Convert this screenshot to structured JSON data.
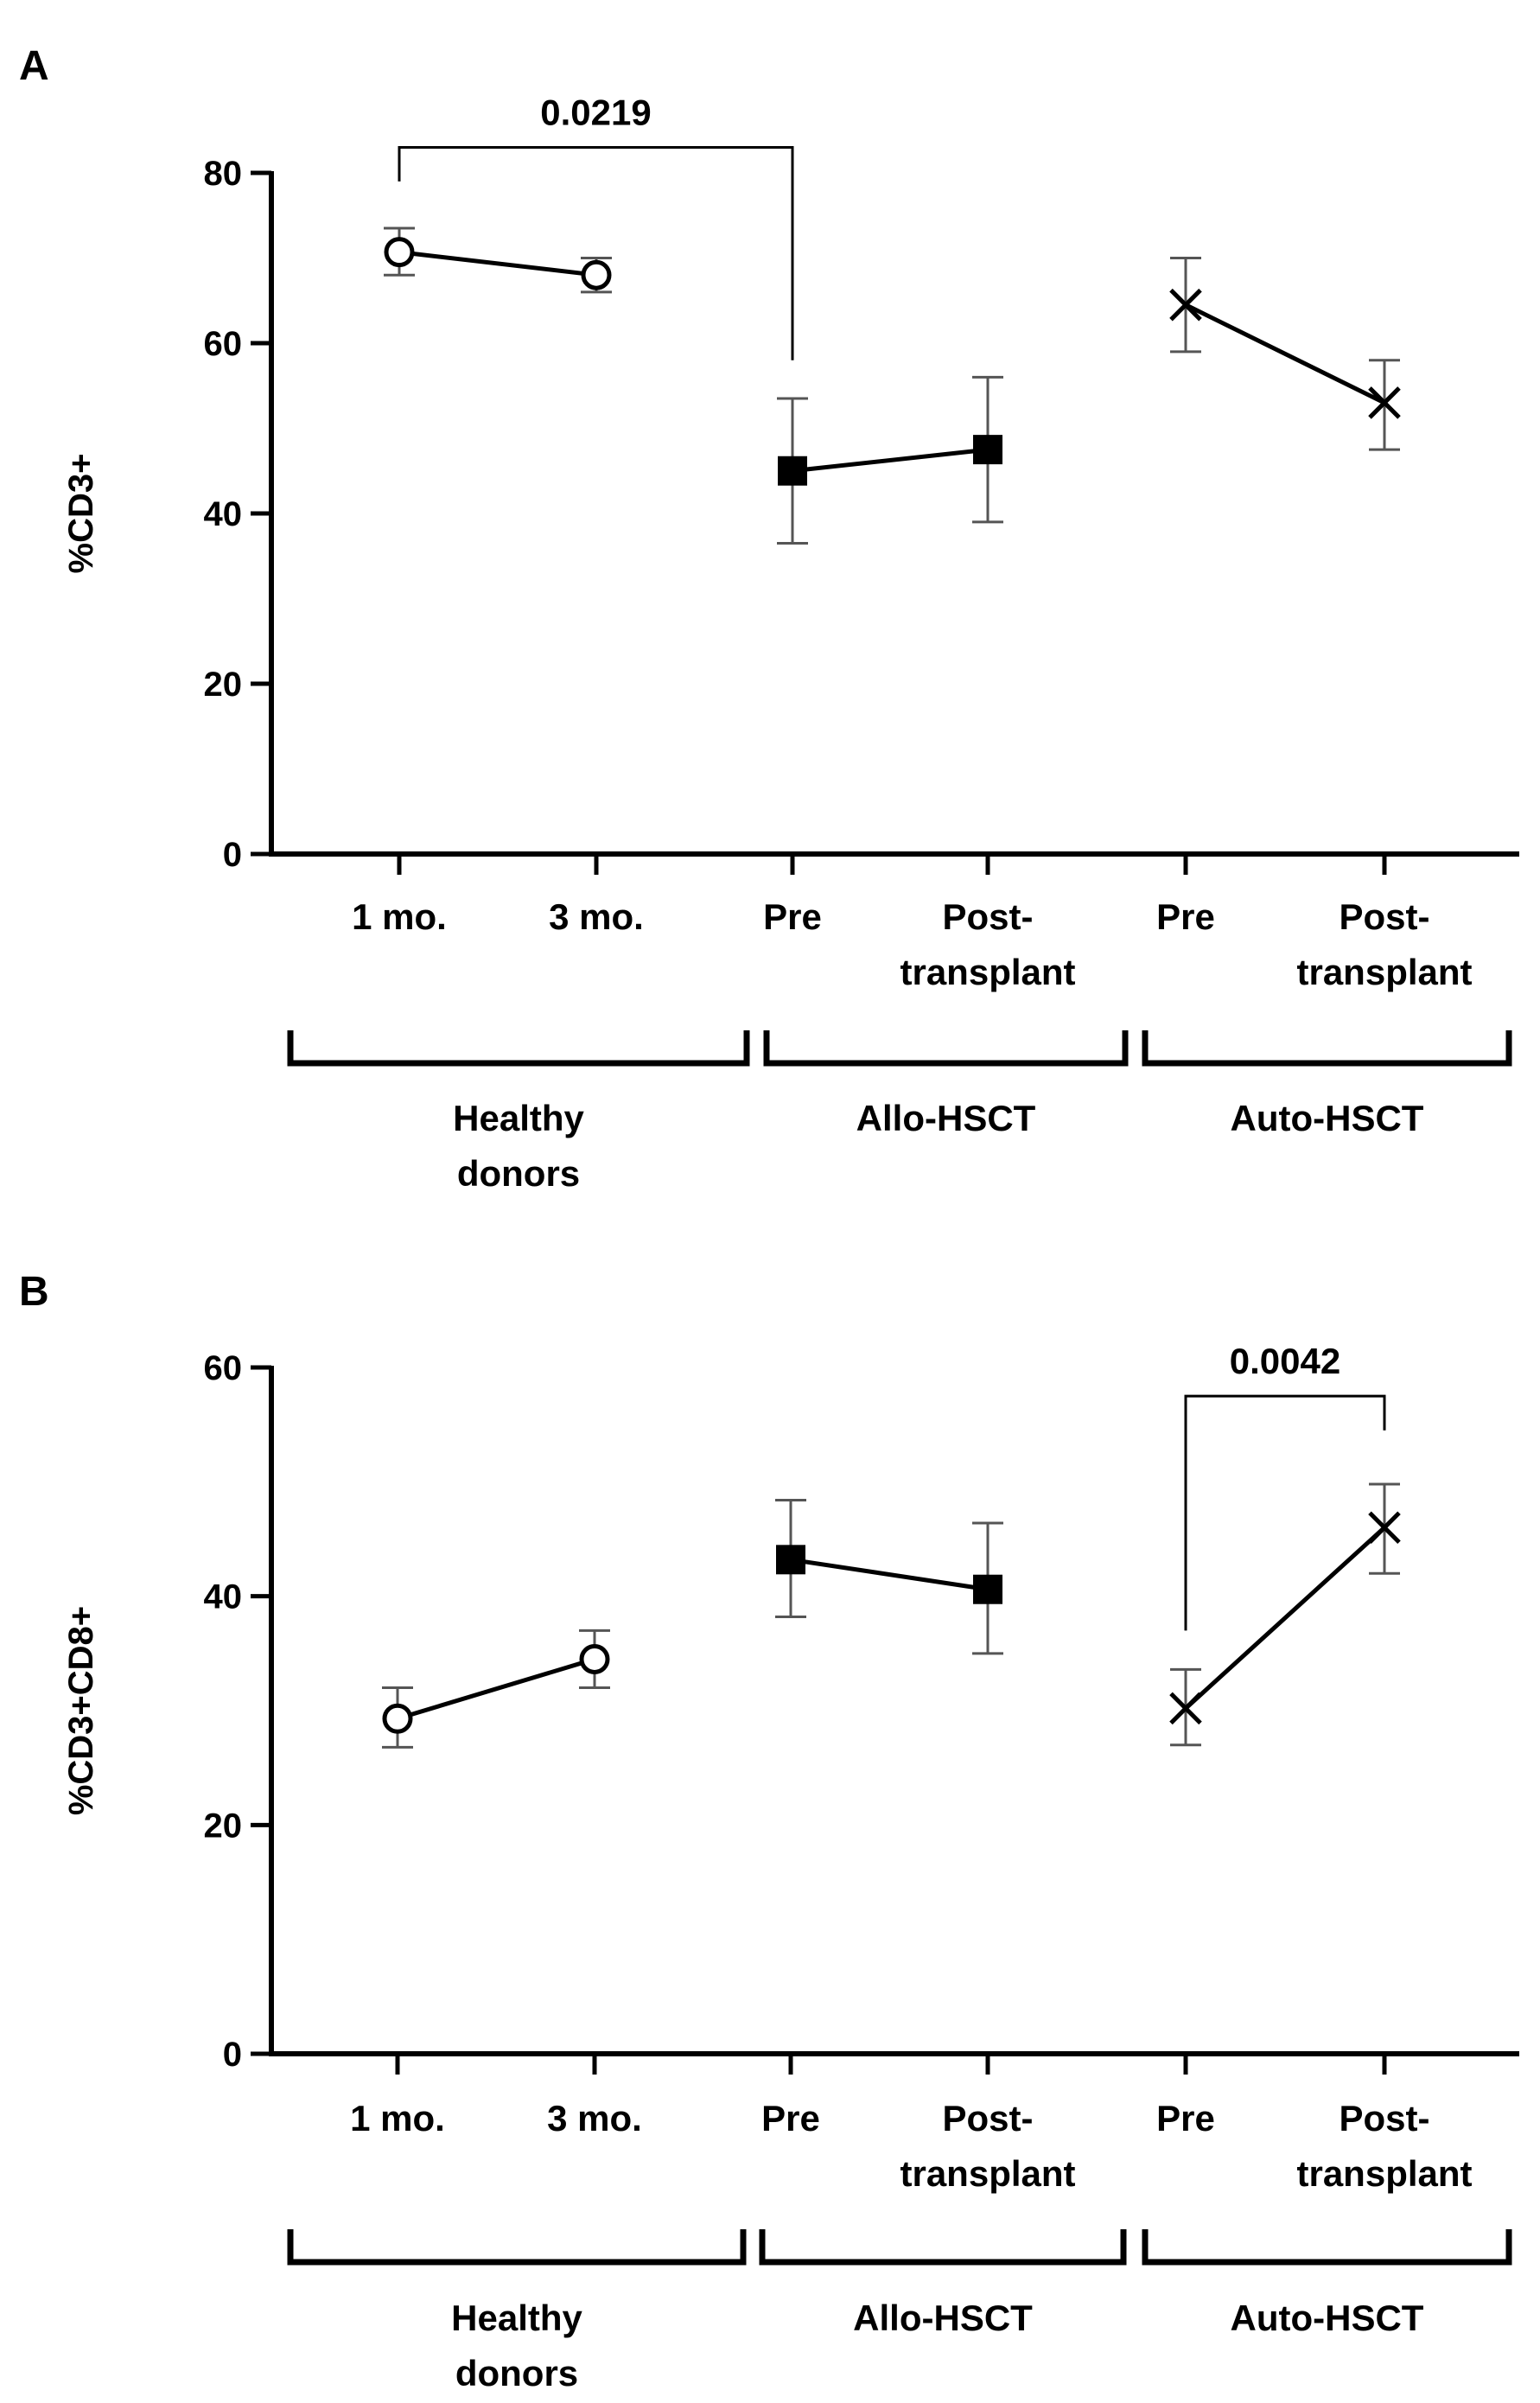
{
  "chart_data": [
    {
      "type": "line",
      "panel_label": "A",
      "ylabel": "%CD3+",
      "ylim": [
        0,
        80
      ],
      "yticks": [
        "0",
        "20",
        "40",
        "60",
        "80"
      ],
      "categories": [
        {
          "lines": [
            "1 mo."
          ]
        },
        {
          "lines": [
            "3 mo."
          ]
        },
        {
          "lines": [
            "Pre"
          ]
        },
        {
          "lines": [
            "Post-",
            "transplant"
          ]
        },
        {
          "lines": [
            "Pre"
          ]
        },
        {
          "lines": [
            "Post-",
            "transplant"
          ]
        }
      ],
      "groups": [
        {
          "name_lines": [
            "Healthy",
            "donors"
          ],
          "from": 0,
          "to": 1
        },
        {
          "name_lines": [
            "Allo-HSCT"
          ],
          "from": 2,
          "to": 3
        },
        {
          "name_lines": [
            "Auto-HSCT"
          ],
          "from": 4,
          "to": 5
        }
      ],
      "series": [
        {
          "name": "Healthy donors",
          "marker": "open-circle",
          "points": [
            {
              "x": 0,
              "y": 70.7,
              "lo": 68.0,
              "hi": 73.5
            },
            {
              "x": 1,
              "y": 68.0,
              "lo": 66.0,
              "hi": 70.0
            }
          ]
        },
        {
          "name": "Allo-HSCT",
          "marker": "filled-square",
          "points": [
            {
              "x": 2,
              "y": 45.0,
              "lo": 36.5,
              "hi": 53.5
            },
            {
              "x": 3,
              "y": 47.5,
              "lo": 39.0,
              "hi": 56.0
            }
          ]
        },
        {
          "name": "Auto-HSCT",
          "marker": "cross",
          "points": [
            {
              "x": 4,
              "y": 64.5,
              "lo": 59.0,
              "hi": 70.0
            },
            {
              "x": 5,
              "y": 53.0,
              "lo": 47.5,
              "hi": 58.0
            }
          ]
        }
      ],
      "annotations": [
        {
          "label": "0.0219",
          "from": 0,
          "to": 2,
          "level": 83,
          "from_bottom": 79,
          "to_bottom": 58
        }
      ]
    },
    {
      "type": "line",
      "panel_label": "B",
      "ylabel": "%CD3+CD8+",
      "ylim": [
        0,
        60
      ],
      "yticks": [
        "0",
        "20",
        "40",
        "60"
      ],
      "categories": [
        {
          "lines": [
            "1 mo."
          ]
        },
        {
          "lines": [
            "3 mo."
          ]
        },
        {
          "lines": [
            "Pre"
          ]
        },
        {
          "lines": [
            "Post-",
            "transplant"
          ]
        },
        {
          "lines": [
            "Pre"
          ]
        },
        {
          "lines": [
            "Post-",
            "transplant"
          ]
        }
      ],
      "groups": [
        {
          "name_lines": [
            "Healthy",
            "donors"
          ],
          "from": 0,
          "to": 1
        },
        {
          "name_lines": [
            "Allo-HSCT"
          ],
          "from": 2,
          "to": 3
        },
        {
          "name_lines": [
            "Auto-HSCT"
          ],
          "from": 4,
          "to": 5
        }
      ],
      "series": [
        {
          "name": "Healthy donors",
          "marker": "open-circle",
          "points": [
            {
              "x": 0,
              "y": 29.3,
              "lo": 26.8,
              "hi": 32.0
            },
            {
              "x": 1,
              "y": 34.5,
              "lo": 32.0,
              "hi": 37.0
            }
          ]
        },
        {
          "name": "Allo-HSCT",
          "marker": "filled-square",
          "points": [
            {
              "x": 2,
              "y": 43.2,
              "lo": 38.2,
              "hi": 48.4
            },
            {
              "x": 3,
              "y": 40.6,
              "lo": 35.0,
              "hi": 46.4
            }
          ]
        },
        {
          "name": "Auto-HSCT",
          "marker": "cross",
          "points": [
            {
              "x": 4,
              "y": 30.2,
              "lo": 27.0,
              "hi": 33.6
            },
            {
              "x": 5,
              "y": 46.0,
              "lo": 42.0,
              "hi": 49.8
            }
          ]
        }
      ],
      "annotations": [
        {
          "label": "0.0042",
          "from": 4,
          "to": 5,
          "level": 57.5,
          "from_bottom": 37,
          "to_bottom": 54.5
        }
      ]
    }
  ]
}
